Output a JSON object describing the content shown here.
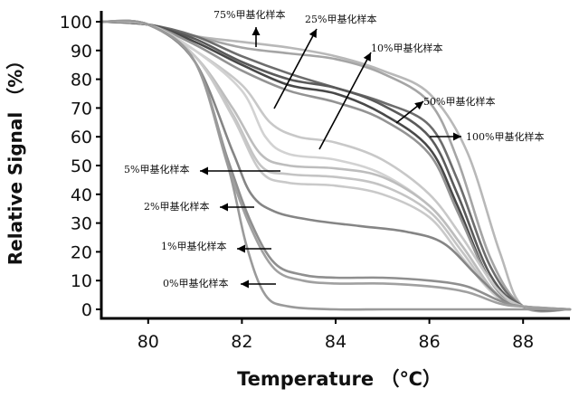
{
  "chart_data": {
    "type": "line",
    "xlabel": "Temperature （℃）",
    "ylabel": "Relative Signal （%）",
    "xlim": [
      79,
      89
    ],
    "ylim": [
      0,
      100
    ],
    "x_ticks": [
      "80",
      "82",
      "84",
      "86",
      "88"
    ],
    "y_ticks": [
      "0",
      "10",
      "20",
      "30",
      "40",
      "50",
      "60",
      "70",
      "80",
      "90",
      "100"
    ],
    "grid": false,
    "annotations": [
      {
        "text": "75%甲基化样本"
      },
      {
        "text": "25%甲基化样本"
      },
      {
        "text": "10%甲基化样本"
      },
      {
        "text": "50%甲基化样本"
      },
      {
        "text": "100%甲基化样本"
      },
      {
        "text": "5%甲基化样本"
      },
      {
        "text": "2%甲基化样本"
      },
      {
        "text": "1%甲基化样本"
      },
      {
        "text": "0%甲基化样本"
      }
    ],
    "series": [
      {
        "color": "#b8b8b8",
        "x": [
          79,
          80,
          81,
          82,
          83,
          84,
          85,
          86,
          86.8,
          87.5,
          88,
          89
        ],
        "y": [
          100,
          99,
          95,
          93,
          91,
          88,
          83,
          75,
          55,
          20,
          1,
          0
        ]
      },
      {
        "color": "#a5a5a5",
        "x": [
          79,
          80,
          81,
          82,
          83,
          84,
          85,
          86,
          86.6,
          87.3,
          88,
          89
        ],
        "y": [
          100,
          99,
          95,
          91,
          89,
          87,
          82,
          72,
          52,
          18,
          1,
          0
        ]
      },
      {
        "color": "#6d6d6d",
        "x": [
          79,
          80,
          81,
          82,
          83,
          84,
          85,
          86,
          86.6,
          87.3,
          88,
          89
        ],
        "y": [
          100,
          99,
          95,
          88,
          82,
          77,
          72,
          64,
          45,
          15,
          1,
          0
        ]
      },
      {
        "color": "#5a5a5a",
        "x": [
          79,
          80,
          81,
          82,
          83,
          84,
          85,
          86,
          86.6,
          87.3,
          88,
          89
        ],
        "y": [
          100,
          99,
          94,
          86,
          80,
          77,
          71,
          60,
          40,
          12,
          1,
          0
        ]
      },
      {
        "color": "#484848",
        "x": [
          79,
          80,
          81,
          82,
          83,
          84,
          85,
          86,
          86.6,
          87.3,
          88,
          89
        ],
        "y": [
          100,
          99,
          93,
          85,
          78,
          75,
          68,
          56,
          36,
          10,
          1,
          0
        ]
      },
      {
        "color": "#939393",
        "x": [
          79,
          80,
          81,
          82,
          83,
          84,
          85,
          86,
          86.6,
          87.3,
          88,
          89
        ],
        "y": [
          100,
          99,
          92,
          83,
          76,
          72,
          66,
          54,
          34,
          10,
          1,
          0
        ]
      },
      {
        "color": "#c8c8c8",
        "x": [
          79,
          80,
          81,
          82,
          82.6,
          83.2,
          84,
          85,
          86,
          86.7,
          87.4,
          88,
          89
        ],
        "y": [
          100,
          99,
          90,
          78,
          65,
          60,
          58,
          52,
          40,
          25,
          8,
          1,
          0
        ]
      },
      {
        "color": "#d2d2d2",
        "x": [
          79,
          80,
          81,
          82,
          82.5,
          83,
          84,
          85,
          86,
          86.7,
          87.4,
          88,
          89
        ],
        "y": [
          100,
          99,
          90,
          76,
          60,
          54,
          52,
          47,
          36,
          22,
          6,
          1,
          0
        ]
      },
      {
        "color": "#bdbdbd",
        "x": [
          79,
          80,
          81,
          81.8,
          82.4,
          83,
          84,
          85,
          86,
          86.7,
          87.4,
          88,
          89
        ],
        "y": [
          100,
          99,
          88,
          70,
          54,
          50,
          49,
          46,
          36,
          22,
          6,
          1,
          0
        ]
      },
      {
        "color": "#c4c4c4",
        "x": [
          79,
          80,
          81,
          81.8,
          82.4,
          83,
          84,
          85,
          86,
          86.7,
          87.4,
          88,
          89
        ],
        "y": [
          100,
          99,
          88,
          68,
          50,
          47,
          46,
          43,
          34,
          20,
          5,
          1,
          0
        ]
      },
      {
        "color": "#c9c9c9",
        "x": [
          79,
          80,
          81,
          81.8,
          82.4,
          83,
          84,
          85,
          86,
          86.7,
          87.4,
          88,
          89
        ],
        "y": [
          100,
          99,
          88,
          67,
          48,
          44,
          43,
          40,
          32,
          18,
          5,
          1,
          0
        ]
      },
      {
        "color": "#858585",
        "x": [
          79,
          80,
          81,
          81.8,
          82.2,
          82.7,
          83.5,
          84.5,
          85.5,
          86.3,
          87,
          87.6,
          88,
          89
        ],
        "y": [
          100,
          99,
          86,
          55,
          40,
          34,
          31,
          29,
          27,
          23,
          12,
          3,
          1,
          0
        ]
      },
      {
        "color": "#8f8f8f",
        "x": [
          79,
          80,
          81,
          81.7,
          82.2,
          82.7,
          83.3,
          84,
          85,
          86,
          86.8,
          87.5,
          88,
          89
        ],
        "y": [
          100,
          99,
          86,
          52,
          30,
          16,
          12,
          11,
          11,
          10,
          8,
          3,
          1,
          0
        ]
      },
      {
        "color": "#a0a0a0",
        "x": [
          79,
          80,
          81,
          81.7,
          82.2,
          82.7,
          83.3,
          84,
          85,
          86,
          86.8,
          87.5,
          88,
          89
        ],
        "y": [
          100,
          99,
          86,
          50,
          28,
          14,
          10,
          9,
          9,
          8,
          6,
          2,
          1,
          0
        ]
      },
      {
        "color": "#9a9a9a",
        "x": [
          79,
          80,
          81,
          81.7,
          82.1,
          82.5,
          83,
          84,
          85,
          86,
          86.8,
          87.5,
          88,
          89
        ],
        "y": [
          100,
          99,
          86,
          50,
          22,
          5,
          1,
          0,
          0,
          0,
          0,
          0,
          0,
          0
        ]
      }
    ]
  }
}
